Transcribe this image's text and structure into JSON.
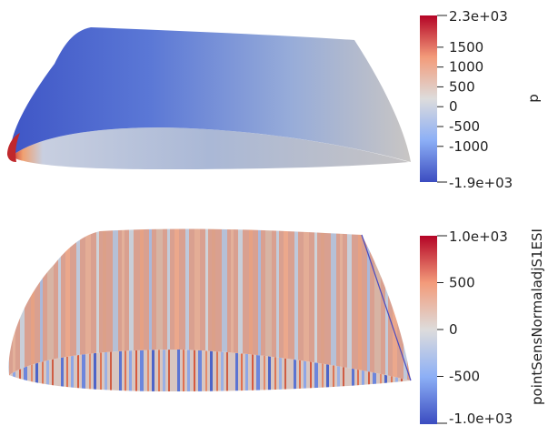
{
  "views": [
    {
      "field": "p",
      "colorbar": {
        "min_label": "-1.9e+03",
        "max_label": "2.3e+03",
        "ticks": [
          "1500",
          "1000",
          "500",
          "0",
          "-500",
          "-1000"
        ],
        "min_value": -1900,
        "max_value": 2300,
        "tick_values": [
          1500,
          1000,
          500,
          0,
          -500,
          -1000
        ]
      }
    },
    {
      "field": "pointSensNormaladjS1ESI",
      "colorbar": {
        "min_label": "-1.0e+03",
        "max_label": "1.0e+03",
        "ticks": [
          "500",
          "0",
          "-500"
        ],
        "min_value": -1000,
        "max_value": 1000,
        "tick_values": [
          500,
          0,
          -500
        ]
      }
    }
  ],
  "colormap": {
    "name": "Cool to Warm",
    "low": "#3b4cc0",
    "mid": "#dddcdc",
    "high": "#b40426"
  }
}
